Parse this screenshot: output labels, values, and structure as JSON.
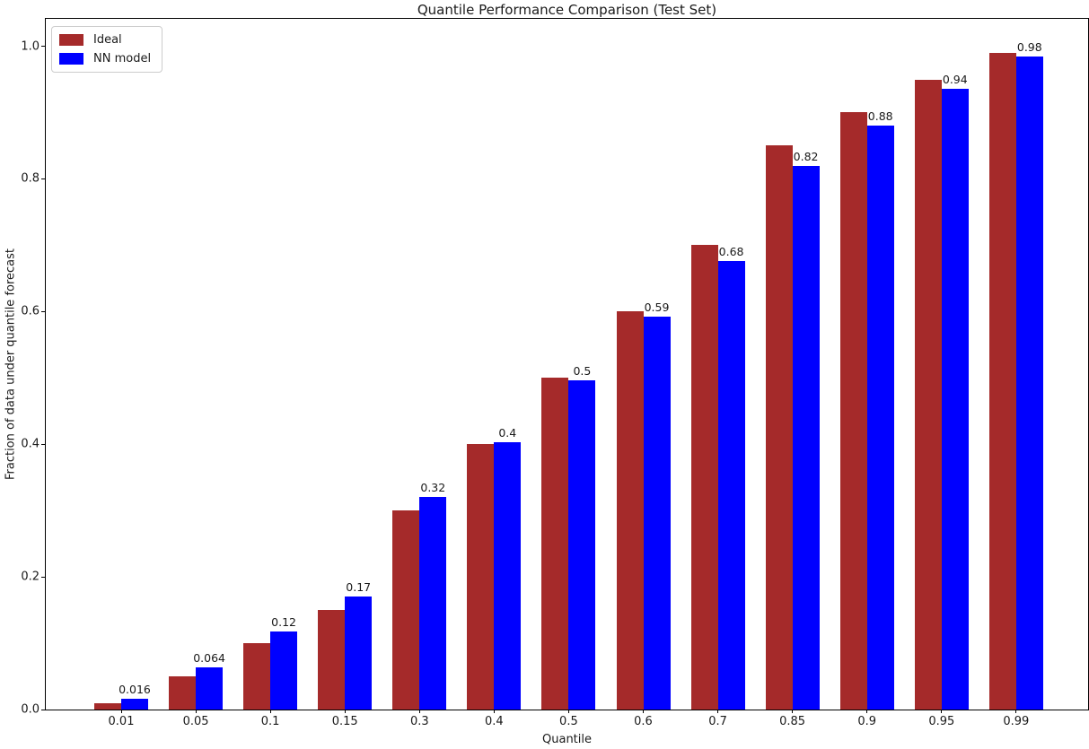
{
  "chart_data": {
    "type": "bar",
    "title": "Quantile Performance Comparison (Test Set)",
    "xlabel": "Quantile",
    "ylabel": "Fraction of data under quantile forecast",
    "categories": [
      "0.01",
      "0.05",
      "0.1",
      "0.15",
      "0.3",
      "0.4",
      "0.5",
      "0.6",
      "0.7",
      "0.85",
      "0.9",
      "0.95",
      "0.99"
    ],
    "series": [
      {
        "name": "Ideal",
        "color": "#A52A2A",
        "values": [
          0.01,
          0.05,
          0.1,
          0.15,
          0.3,
          0.4,
          0.5,
          0.6,
          0.7,
          0.85,
          0.9,
          0.95,
          0.99
        ]
      },
      {
        "name": "NN model",
        "color": "#0000FF",
        "values": [
          0.016,
          0.064,
          0.118,
          0.171,
          0.321,
          0.403,
          0.497,
          0.593,
          0.676,
          0.82,
          0.881,
          0.936,
          0.984
        ]
      }
    ],
    "bar_labels": [
      "0.016",
      "0.064",
      "0.12",
      "0.17",
      "0.32",
      "0.4",
      "0.5",
      "0.59",
      "0.68",
      "0.82",
      "0.88",
      "0.94",
      "0.98"
    ],
    "yticks": [
      "0.0",
      "0.2",
      "0.4",
      "0.6",
      "0.8",
      "1.0"
    ],
    "ytick_values": [
      0.0,
      0.2,
      0.4,
      0.6,
      0.8,
      1.0
    ],
    "ylim": [
      0,
      1.044
    ],
    "grid": false,
    "legend": {
      "position": "upper left",
      "entries": [
        {
          "label": "Ideal",
          "color": "#A52A2A"
        },
        {
          "label": "NN model",
          "color": "#0000FF"
        }
      ]
    }
  }
}
